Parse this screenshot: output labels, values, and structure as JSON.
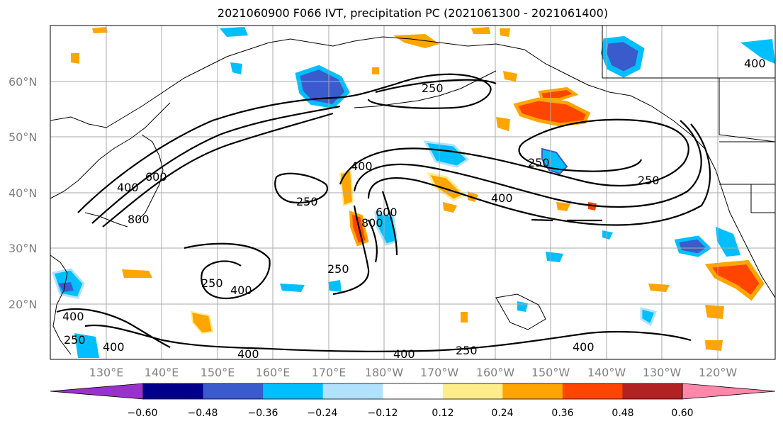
{
  "title": "2021060900 F066 IVT, precipitation PC (2021061300 - 2021061400)",
  "lat_labels": [
    "60°N",
    "50°N",
    "40°N",
    "30°N",
    "20°N"
  ],
  "lon_labels": [
    "130°E",
    "140°E",
    "150°E",
    "160°E",
    "170°E",
    "180°W",
    "170°W",
    "160°W",
    "150°W",
    "140°W",
    "130°W",
    "120°W"
  ],
  "colorbar": {
    "colors": [
      "#9932cc",
      "#00008b",
      "#3a5bcc",
      "#00bfff",
      "#b0e2ff",
      "#ffffff",
      "#ffec8b",
      "#ffa500",
      "#ff4500",
      "#b22222",
      "#ff88aa"
    ],
    "tick_labels": [
      "−0.60",
      "−0.48",
      "−0.36",
      "−0.24",
      "−0.12",
      "0.12",
      "0.24",
      "0.36",
      "0.48",
      "0.60"
    ]
  },
  "contour_labels": [
    "250",
    "250",
    "250",
    "250",
    "250",
    "250",
    "250",
    "250",
    "400",
    "400",
    "400",
    "400",
    "400",
    "400",
    "400",
    "400",
    "600",
    "600",
    "800",
    "800",
    "400",
    "400"
  ]
}
